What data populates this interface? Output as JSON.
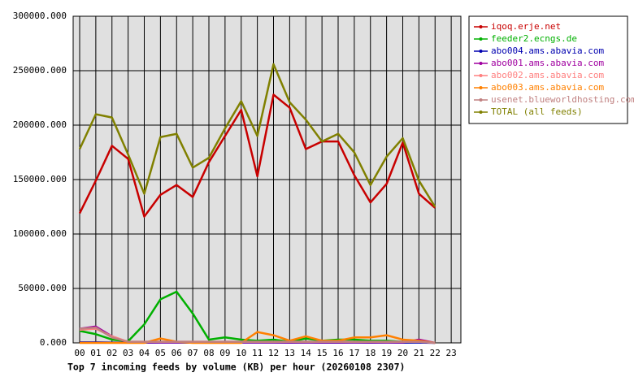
{
  "chart_data": {
    "type": "line",
    "title": "Top 7 incoming feeds by volume (KB) per hour (20260108 2307)",
    "categories": [
      "00",
      "01",
      "02",
      "03",
      "04",
      "05",
      "06",
      "07",
      "08",
      "09",
      "10",
      "11",
      "12",
      "13",
      "14",
      "15",
      "16",
      "17",
      "18",
      "19",
      "20",
      "21",
      "22",
      "23"
    ],
    "ylim": [
      0,
      300000
    ],
    "yticks": [
      {
        "value": 0,
        "label": "0.000"
      },
      {
        "value": 50000,
        "label": "50000.000"
      },
      {
        "value": 100000,
        "label": "100000.000"
      },
      {
        "value": 150000,
        "label": "150000.000"
      },
      {
        "value": 200000,
        "label": "200000.000"
      },
      {
        "value": 250000,
        "label": "250000.000"
      },
      {
        "value": 300000,
        "label": "300000.000"
      }
    ],
    "grid": true,
    "series": [
      {
        "name": "iqoq.erje.net",
        "color": "#c80000",
        "values": [
          119000,
          149000,
          181000,
          169000,
          116000,
          136000,
          145000,
          134000,
          166000,
          190000,
          214000,
          153000,
          228000,
          216000,
          178000,
          185000,
          185000,
          154000,
          129000,
          146000,
          184000,
          137000,
          124000,
          null
        ]
      },
      {
        "name": "feeder2.ecngs.de",
        "color": "#00b000",
        "values": [
          11000,
          8000,
          3000,
          1500,
          17000,
          40000,
          47000,
          27000,
          3000,
          5000,
          3000,
          2000,
          3000,
          1000,
          4000,
          2000,
          3000,
          3000,
          2000,
          2000,
          1000,
          1000,
          0,
          null
        ]
      },
      {
        "name": "abo004.ams.abavia.com",
        "color": "#0000b0",
        "values": [
          500,
          500,
          300,
          200,
          200,
          300,
          300,
          200,
          200,
          300,
          300,
          300,
          300,
          200,
          300,
          200,
          200,
          300,
          200,
          300,
          200,
          300,
          0,
          null
        ]
      },
      {
        "name": "abo001.ams.abavia.com",
        "color": "#a000a0",
        "values": [
          13000,
          15000,
          6000,
          500,
          500,
          500,
          500,
          500,
          500,
          500,
          500,
          500,
          500,
          500,
          500,
          500,
          500,
          500,
          500,
          500,
          500,
          3000,
          0,
          null
        ]
      },
      {
        "name": "abo002.ams.abavia.com",
        "color": "#ff8080",
        "values": [
          12000,
          13000,
          6000,
          1000,
          1000,
          1000,
          1000,
          1000,
          1000,
          1000,
          1000,
          1000,
          1000,
          1000,
          1000,
          1000,
          1000,
          1000,
          1000,
          1000,
          1000,
          1000,
          0,
          null
        ]
      },
      {
        "name": "abo003.ams.abavia.com",
        "color": "#ff8000",
        "values": [
          0,
          0,
          0,
          0,
          0,
          4000,
          1000,
          0,
          0,
          0,
          0,
          10000,
          7000,
          2000,
          6000,
          2000,
          2000,
          5000,
          5000,
          7000,
          3000,
          2000,
          0,
          null
        ]
      },
      {
        "name": "usenet.blueworldhosting.com",
        "color": "#c08080",
        "values": [
          13000,
          14000,
          5000,
          1000,
          1000,
          1000,
          1000,
          1000,
          1000,
          1000,
          1000,
          1000,
          1000,
          1000,
          1000,
          1000,
          1000,
          1000,
          1000,
          1000,
          1000,
          1000,
          0,
          null
        ]
      },
      {
        "name": "TOTAL (all feeds)",
        "color": "#808000",
        "values": [
          178000,
          210000,
          207000,
          173000,
          137000,
          189000,
          192000,
          161000,
          170000,
          197000,
          222000,
          190000,
          256000,
          221000,
          205000,
          185000,
          192000,
          175000,
          145000,
          171000,
          188000,
          149000,
          125000,
          null
        ]
      }
    ]
  }
}
